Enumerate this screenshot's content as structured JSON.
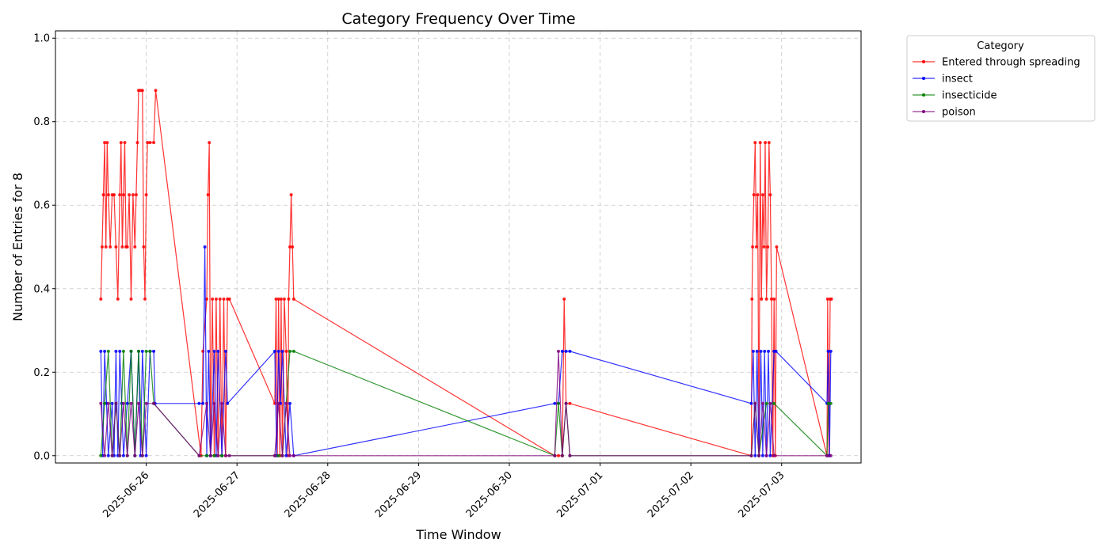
{
  "chart_data": {
    "type": "line",
    "title": "Category Frequency Over Time",
    "xlabel": "Time Window",
    "ylabel": "Number of Entries for 8",
    "x_ticks": [
      "2025-06-26",
      "2025-06-27",
      "2025-06-28",
      "2025-06-29",
      "2025-06-30",
      "2025-07-01",
      "2025-07-02",
      "2025-07-03"
    ],
    "y_ticks": [
      "0.0",
      "0.2",
      "0.4",
      "0.6",
      "0.8",
      "1.0"
    ],
    "ylim": [
      0,
      1.0
    ],
    "xlim": [
      "2025-06-25T00:00",
      "2025-07-03T21:00"
    ],
    "grid": true,
    "legend": {
      "title": "Category",
      "position": "outside-top-right"
    },
    "series": [
      {
        "name": "Entered through spreading",
        "color": "#ff0000",
        "points": [
          [
            "2025-06-25T12:00",
            0.375
          ],
          [
            "2025-06-25T12:20",
            0.5
          ],
          [
            "2025-06-25T12:40",
            0.625
          ],
          [
            "2025-06-25T13:00",
            0.75
          ],
          [
            "2025-06-25T13:20",
            0.5
          ],
          [
            "2025-06-25T13:40",
            0.75
          ],
          [
            "2025-06-25T14:00",
            0.625
          ],
          [
            "2025-06-25T14:30",
            0.5
          ],
          [
            "2025-06-25T15:00",
            0.625
          ],
          [
            "2025-06-25T15:30",
            0.625
          ],
          [
            "2025-06-25T16:00",
            0.5
          ],
          [
            "2025-06-25T16:30",
            0.375
          ],
          [
            "2025-06-25T17:00",
            0.625
          ],
          [
            "2025-06-25T17:20",
            0.75
          ],
          [
            "2025-06-25T17:40",
            0.5
          ],
          [
            "2025-06-25T18:00",
            0.625
          ],
          [
            "2025-06-25T18:20",
            0.75
          ],
          [
            "2025-06-25T18:40",
            0.5
          ],
          [
            "2025-06-25T19:00",
            0.5
          ],
          [
            "2025-06-25T19:30",
            0.625
          ],
          [
            "2025-06-25T20:00",
            0.375
          ],
          [
            "2025-06-25T20:30",
            0.625
          ],
          [
            "2025-06-25T21:00",
            0.5
          ],
          [
            "2025-06-25T21:20",
            0.625
          ],
          [
            "2025-06-25T21:40",
            0.75
          ],
          [
            "2025-06-25T22:00",
            0.875
          ],
          [
            "2025-06-25T22:30",
            0.875
          ],
          [
            "2025-06-25T23:00",
            0.875
          ],
          [
            "2025-06-25T23:20",
            0.5
          ],
          [
            "2025-06-25T23:40",
            0.375
          ],
          [
            "2025-06-26T00:00",
            0.625
          ],
          [
            "2025-06-26T00:20",
            0.75
          ],
          [
            "2025-06-26T01:00",
            0.75
          ],
          [
            "2025-06-26T02:00",
            0.75
          ],
          [
            "2025-06-26T02:30",
            0.875
          ],
          [
            "2025-06-26T14:30",
            0.0
          ],
          [
            "2025-06-26T15:00",
            0.25
          ],
          [
            "2025-06-26T16:00",
            0.375
          ],
          [
            "2025-06-26T16:20",
            0.625
          ],
          [
            "2025-06-26T16:40",
            0.75
          ],
          [
            "2025-06-26T17:00",
            0.0
          ],
          [
            "2025-06-26T17:30",
            0.375
          ],
          [
            "2025-06-26T18:00",
            0.0
          ],
          [
            "2025-06-26T18:30",
            0.375
          ],
          [
            "2025-06-26T19:00",
            0.0
          ],
          [
            "2025-06-26T19:30",
            0.375
          ],
          [
            "2025-06-26T20:00",
            0.0
          ],
          [
            "2025-06-26T20:30",
            0.375
          ],
          [
            "2025-06-26T21:00",
            0.0
          ],
          [
            "2025-06-26T21:30",
            0.375
          ],
          [
            "2025-06-26T22:00",
            0.375
          ],
          [
            "2025-06-27T10:00",
            0.125
          ],
          [
            "2025-06-27T10:20",
            0.375
          ],
          [
            "2025-06-27T10:40",
            0.0
          ],
          [
            "2025-06-27T11:00",
            0.375
          ],
          [
            "2025-06-27T11:20",
            0.0
          ],
          [
            "2025-06-27T11:40",
            0.375
          ],
          [
            "2025-06-27T12:00",
            0.0
          ],
          [
            "2025-06-27T12:30",
            0.375
          ],
          [
            "2025-06-27T13:00",
            0.25
          ],
          [
            "2025-06-27T13:30",
            0.0
          ],
          [
            "2025-06-27T13:40",
            0.375
          ],
          [
            "2025-06-27T14:00",
            0.5
          ],
          [
            "2025-06-27T14:20",
            0.625
          ],
          [
            "2025-06-27T14:40",
            0.5
          ],
          [
            "2025-06-27T15:00",
            0.375
          ],
          [
            "2025-06-30T12:00",
            0.0
          ],
          [
            "2025-06-30T13:00",
            0.0
          ],
          [
            "2025-06-30T14:00",
            0.0
          ],
          [
            "2025-06-30T14:30",
            0.375
          ],
          [
            "2025-06-30T15:00",
            0.125
          ],
          [
            "2025-06-30T16:00",
            0.125
          ],
          [
            "2025-07-02T16:00",
            0.0
          ],
          [
            "2025-07-02T16:10",
            0.375
          ],
          [
            "2025-07-02T16:20",
            0.5
          ],
          [
            "2025-07-02T16:40",
            0.625
          ],
          [
            "2025-07-02T17:00",
            0.75
          ],
          [
            "2025-07-02T17:20",
            0.5
          ],
          [
            "2025-07-02T17:40",
            0.625
          ],
          [
            "2025-07-02T18:00",
            0.0
          ],
          [
            "2025-07-02T18:20",
            0.75
          ],
          [
            "2025-07-02T18:40",
            0.375
          ],
          [
            "2025-07-02T19:00",
            0.625
          ],
          [
            "2025-07-02T19:20",
            0.5
          ],
          [
            "2025-07-02T19:40",
            0.75
          ],
          [
            "2025-07-02T20:00",
            0.375
          ],
          [
            "2025-07-02T20:20",
            0.5
          ],
          [
            "2025-07-02T20:40",
            0.75
          ],
          [
            "2025-07-02T21:00",
            0.625
          ],
          [
            "2025-07-02T21:20",
            0.375
          ],
          [
            "2025-07-02T21:40",
            0.0
          ],
          [
            "2025-07-02T22:00",
            0.375
          ],
          [
            "2025-07-02T22:20",
            0.0
          ],
          [
            "2025-07-02T22:40",
            0.5
          ],
          [
            "2025-07-03T12:00",
            0.0
          ],
          [
            "2025-07-03T12:10",
            0.375
          ],
          [
            "2025-07-03T12:30",
            0.0
          ],
          [
            "2025-07-03T12:50",
            0.375
          ],
          [
            "2025-07-03T13:10",
            0.375
          ]
        ]
      },
      {
        "name": "insect",
        "color": "#0000ff",
        "points": [
          [
            "2025-06-25T12:00",
            0.25
          ],
          [
            "2025-06-25T12:30",
            0.0
          ],
          [
            "2025-06-25T13:00",
            0.25
          ],
          [
            "2025-06-25T13:30",
            0.125
          ],
          [
            "2025-06-25T14:00",
            0.0
          ],
          [
            "2025-06-25T15:00",
            0.125
          ],
          [
            "2025-06-25T15:30",
            0.0
          ],
          [
            "2025-06-25T16:00",
            0.25
          ],
          [
            "2025-06-25T16:30",
            0.0
          ],
          [
            "2025-06-25T17:00",
            0.25
          ],
          [
            "2025-06-25T17:30",
            0.125
          ],
          [
            "2025-06-25T18:00",
            0.0
          ],
          [
            "2025-06-25T19:00",
            0.125
          ],
          [
            "2025-06-25T20:00",
            0.25
          ],
          [
            "2025-06-25T21:00",
            0.0
          ],
          [
            "2025-06-25T22:00",
            0.25
          ],
          [
            "2025-06-25T22:30",
            0.0
          ],
          [
            "2025-06-25T23:00",
            0.25
          ],
          [
            "2025-06-26T00:00",
            0.0
          ],
          [
            "2025-06-26T01:00",
            0.25
          ],
          [
            "2025-06-26T02:00",
            0.25
          ],
          [
            "2025-06-26T02:20",
            0.125
          ],
          [
            "2025-06-26T14:00",
            0.125
          ],
          [
            "2025-06-26T15:00",
            0.125
          ],
          [
            "2025-06-26T15:30",
            0.5
          ],
          [
            "2025-06-26T16:00",
            0.0
          ],
          [
            "2025-06-26T16:30",
            0.25
          ],
          [
            "2025-06-26T17:00",
            0.0
          ],
          [
            "2025-06-26T18:00",
            0.25
          ],
          [
            "2025-06-26T18:30",
            0.0
          ],
          [
            "2025-06-26T19:00",
            0.25
          ],
          [
            "2025-06-26T20:00",
            0.0
          ],
          [
            "2025-06-26T21:00",
            0.25
          ],
          [
            "2025-06-26T21:30",
            0.125
          ],
          [
            "2025-06-27T10:00",
            0.25
          ],
          [
            "2025-06-27T10:30",
            0.0
          ],
          [
            "2025-06-27T11:00",
            0.25
          ],
          [
            "2025-06-27T11:30",
            0.125
          ],
          [
            "2025-06-27T12:00",
            0.25
          ],
          [
            "2025-06-27T13:00",
            0.0
          ],
          [
            "2025-06-27T14:00",
            0.125
          ],
          [
            "2025-06-27T15:00",
            0.0
          ],
          [
            "2025-06-30T12:00",
            0.125
          ],
          [
            "2025-06-30T13:00",
            0.125
          ],
          [
            "2025-06-30T14:00",
            0.25
          ],
          [
            "2025-06-30T15:00",
            0.25
          ],
          [
            "2025-06-30T16:00",
            0.25
          ],
          [
            "2025-07-02T16:00",
            0.125
          ],
          [
            "2025-07-02T16:30",
            0.25
          ],
          [
            "2025-07-02T17:00",
            0.0
          ],
          [
            "2025-07-02T17:30",
            0.25
          ],
          [
            "2025-07-02T18:00",
            0.0
          ],
          [
            "2025-07-02T18:30",
            0.25
          ],
          [
            "2025-07-02T19:00",
            0.0
          ],
          [
            "2025-07-02T19:30",
            0.25
          ],
          [
            "2025-07-02T20:00",
            0.0
          ],
          [
            "2025-07-02T20:30",
            0.25
          ],
          [
            "2025-07-02T21:00",
            0.0
          ],
          [
            "2025-07-02T22:00",
            0.25
          ],
          [
            "2025-07-02T22:30",
            0.25
          ],
          [
            "2025-07-03T12:00",
            0.125
          ],
          [
            "2025-07-03T12:20",
            0.25
          ],
          [
            "2025-07-03T12:40",
            0.0
          ],
          [
            "2025-07-03T13:00",
            0.25
          ]
        ]
      },
      {
        "name": "insecticide",
        "color": "#008000",
        "points": [
          [
            "2025-06-25T12:00",
            0.0
          ],
          [
            "2025-06-25T13:00",
            0.125
          ],
          [
            "2025-06-25T14:00",
            0.25
          ],
          [
            "2025-06-25T15:00",
            0.0
          ],
          [
            "2025-06-25T16:00",
            0.125
          ],
          [
            "2025-06-25T17:00",
            0.0
          ],
          [
            "2025-06-25T18:00",
            0.25
          ],
          [
            "2025-06-25T19:00",
            0.0
          ],
          [
            "2025-06-25T20:00",
            0.25
          ],
          [
            "2025-06-25T21:00",
            0.0
          ],
          [
            "2025-06-25T22:00",
            0.25
          ],
          [
            "2025-06-25T23:00",
            0.0
          ],
          [
            "2025-06-26T00:00",
            0.25
          ],
          [
            "2025-06-26T01:00",
            0.25
          ],
          [
            "2025-06-26T02:00",
            0.125
          ],
          [
            "2025-06-26T14:00",
            0.0
          ],
          [
            "2025-06-26T16:00",
            0.0
          ],
          [
            "2025-06-26T18:00",
            0.0
          ],
          [
            "2025-06-26T20:00",
            0.0
          ],
          [
            "2025-06-27T10:00",
            0.0
          ],
          [
            "2025-06-27T11:00",
            0.0
          ],
          [
            "2025-06-27T12:00",
            0.0
          ],
          [
            "2025-06-27T14:00",
            0.25
          ],
          [
            "2025-06-27T15:00",
            0.25
          ],
          [
            "2025-06-30T12:00",
            0.0
          ],
          [
            "2025-06-30T13:00",
            0.125
          ],
          [
            "2025-06-30T14:00",
            0.0
          ],
          [
            "2025-06-30T15:00",
            0.125
          ],
          [
            "2025-06-30T16:00",
            0.0
          ],
          [
            "2025-07-02T16:00",
            0.0
          ],
          [
            "2025-07-02T17:00",
            0.125
          ],
          [
            "2025-07-02T18:00",
            0.0
          ],
          [
            "2025-07-02T20:00",
            0.125
          ],
          [
            "2025-07-02T22:00",
            0.125
          ],
          [
            "2025-07-03T12:00",
            0.0
          ],
          [
            "2025-07-03T12:20",
            0.125
          ],
          [
            "2025-07-03T13:00",
            0.125
          ]
        ]
      },
      {
        "name": "poison",
        "color": "#800080",
        "points": [
          [
            "2025-06-25T12:00",
            0.125
          ],
          [
            "2025-06-25T13:00",
            0.0
          ],
          [
            "2025-06-25T14:00",
            0.125
          ],
          [
            "2025-06-25T15:00",
            0.0
          ],
          [
            "2025-06-25T16:00",
            0.125
          ],
          [
            "2025-06-25T17:00",
            0.0
          ],
          [
            "2025-06-25T18:00",
            0.125
          ],
          [
            "2025-06-25T19:00",
            0.0
          ],
          [
            "2025-06-25T20:00",
            0.125
          ],
          [
            "2025-06-25T21:00",
            0.0
          ],
          [
            "2025-06-25T22:00",
            0.125
          ],
          [
            "2025-06-25T23:00",
            0.0
          ],
          [
            "2025-06-26T00:00",
            0.125
          ],
          [
            "2025-06-26T02:00",
            0.125
          ],
          [
            "2025-06-26T14:00",
            0.0
          ],
          [
            "2025-06-26T16:00",
            0.125
          ],
          [
            "2025-06-26T17:00",
            0.0
          ],
          [
            "2025-06-26T18:00",
            0.125
          ],
          [
            "2025-06-26T19:00",
            0.0
          ],
          [
            "2025-06-26T20:00",
            0.125
          ],
          [
            "2025-06-26T21:00",
            0.0
          ],
          [
            "2025-06-26T22:00",
            0.0
          ],
          [
            "2025-06-27T10:00",
            0.0
          ],
          [
            "2025-06-27T11:00",
            0.125
          ],
          [
            "2025-06-27T12:00",
            0.0
          ],
          [
            "2025-06-27T13:00",
            0.125
          ],
          [
            "2025-06-27T14:00",
            0.0
          ],
          [
            "2025-06-27T15:00",
            0.0
          ],
          [
            "2025-06-30T12:00",
            0.0
          ],
          [
            "2025-06-30T13:00",
            0.25
          ],
          [
            "2025-06-30T14:00",
            0.0
          ],
          [
            "2025-06-30T15:00",
            0.125
          ],
          [
            "2025-06-30T16:00",
            0.0
          ],
          [
            "2025-07-02T16:00",
            0.0
          ],
          [
            "2025-07-02T17:00",
            0.125
          ],
          [
            "2025-07-02T18:00",
            0.0
          ],
          [
            "2025-07-02T19:00",
            0.125
          ],
          [
            "2025-07-02T20:00",
            0.0
          ],
          [
            "2025-07-02T21:00",
            0.125
          ],
          [
            "2025-07-02T22:00",
            0.0
          ],
          [
            "2025-07-03T12:00",
            0.0
          ],
          [
            "2025-07-03T13:00",
            0.0
          ]
        ]
      }
    ]
  }
}
